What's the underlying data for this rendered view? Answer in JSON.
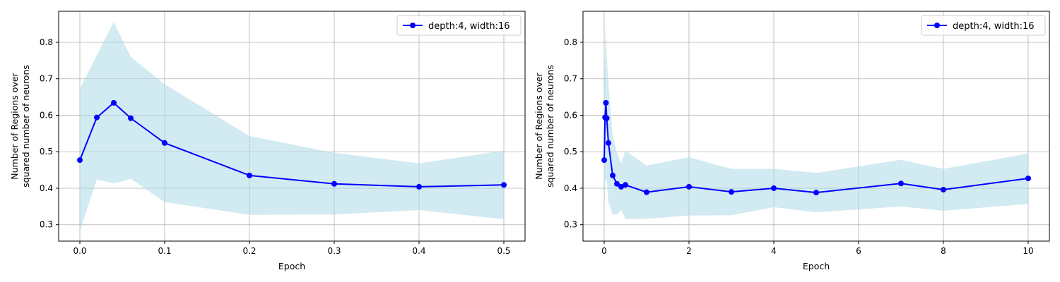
{
  "chart_data": [
    {
      "type": "line",
      "xlabel": "Epoch",
      "ylabel_lines": [
        "Number of Regions over",
        "squared number of neurons"
      ],
      "xlim": [
        -0.025,
        0.525
      ],
      "ylim": [
        0.255,
        0.885
      ],
      "xticks": [
        0.0,
        0.1,
        0.2,
        0.3,
        0.4,
        0.5
      ],
      "xtick_labels": [
        "0.0",
        "0.1",
        "0.2",
        "0.3",
        "0.4",
        "0.5"
      ],
      "yticks": [
        0.3,
        0.4,
        0.5,
        0.6,
        0.7,
        0.8
      ],
      "ytick_labels": [
        "0.3",
        "0.4",
        "0.5",
        "0.6",
        "0.7",
        "0.8"
      ],
      "grid": true,
      "legend_position": "top-right",
      "series": [
        {
          "name": "depth:4, width:16",
          "color": "#0000ff",
          "band_color": "#add8e6",
          "x": [
            0.0,
            0.02,
            0.04,
            0.06,
            0.1,
            0.2,
            0.3,
            0.4,
            0.5
          ],
          "y": [
            0.477,
            0.594,
            0.634,
            0.592,
            0.524,
            0.435,
            0.412,
            0.404,
            0.409
          ],
          "upper": [
            0.672,
            0.765,
            0.855,
            0.76,
            0.685,
            0.543,
            0.497,
            0.468,
            0.503
          ],
          "lower": [
            0.282,
            0.424,
            0.413,
            0.426,
            0.362,
            0.327,
            0.328,
            0.34,
            0.315
          ]
        }
      ]
    },
    {
      "type": "line",
      "xlabel": "Epoch",
      "ylabel_lines": [
        "Number of Regions over",
        "squared number of neurons"
      ],
      "xlim": [
        -0.5,
        10.5
      ],
      "ylim": [
        0.255,
        0.885
      ],
      "xticks": [
        0,
        2,
        4,
        6,
        8,
        10
      ],
      "xtick_labels": [
        "0",
        "2",
        "4",
        "6",
        "8",
        "10"
      ],
      "yticks": [
        0.3,
        0.4,
        0.5,
        0.6,
        0.7,
        0.8
      ],
      "ytick_labels": [
        "0.3",
        "0.4",
        "0.5",
        "0.6",
        "0.7",
        "0.8"
      ],
      "grid": true,
      "legend_position": "top-right",
      "series": [
        {
          "name": "depth:4, width:16",
          "color": "#0000ff",
          "band_color": "#add8e6",
          "x": [
            0.0,
            0.02,
            0.04,
            0.06,
            0.1,
            0.2,
            0.3,
            0.4,
            0.5,
            1,
            2,
            3,
            4,
            5,
            7,
            8,
            10
          ],
          "y": [
            0.477,
            0.594,
            0.634,
            0.592,
            0.524,
            0.435,
            0.412,
            0.404,
            0.409,
            0.389,
            0.404,
            0.39,
            0.4,
            0.388,
            0.413,
            0.396,
            0.427
          ],
          "upper": [
            0.672,
            0.765,
            0.855,
            0.76,
            0.685,
            0.543,
            0.497,
            0.468,
            0.503,
            0.462,
            0.485,
            0.453,
            0.453,
            0.442,
            0.478,
            0.453,
            0.495
          ],
          "lower": [
            0.282,
            0.424,
            0.413,
            0.426,
            0.362,
            0.327,
            0.328,
            0.34,
            0.315,
            0.316,
            0.325,
            0.326,
            0.348,
            0.334,
            0.35,
            0.338,
            0.357
          ]
        }
      ]
    }
  ]
}
